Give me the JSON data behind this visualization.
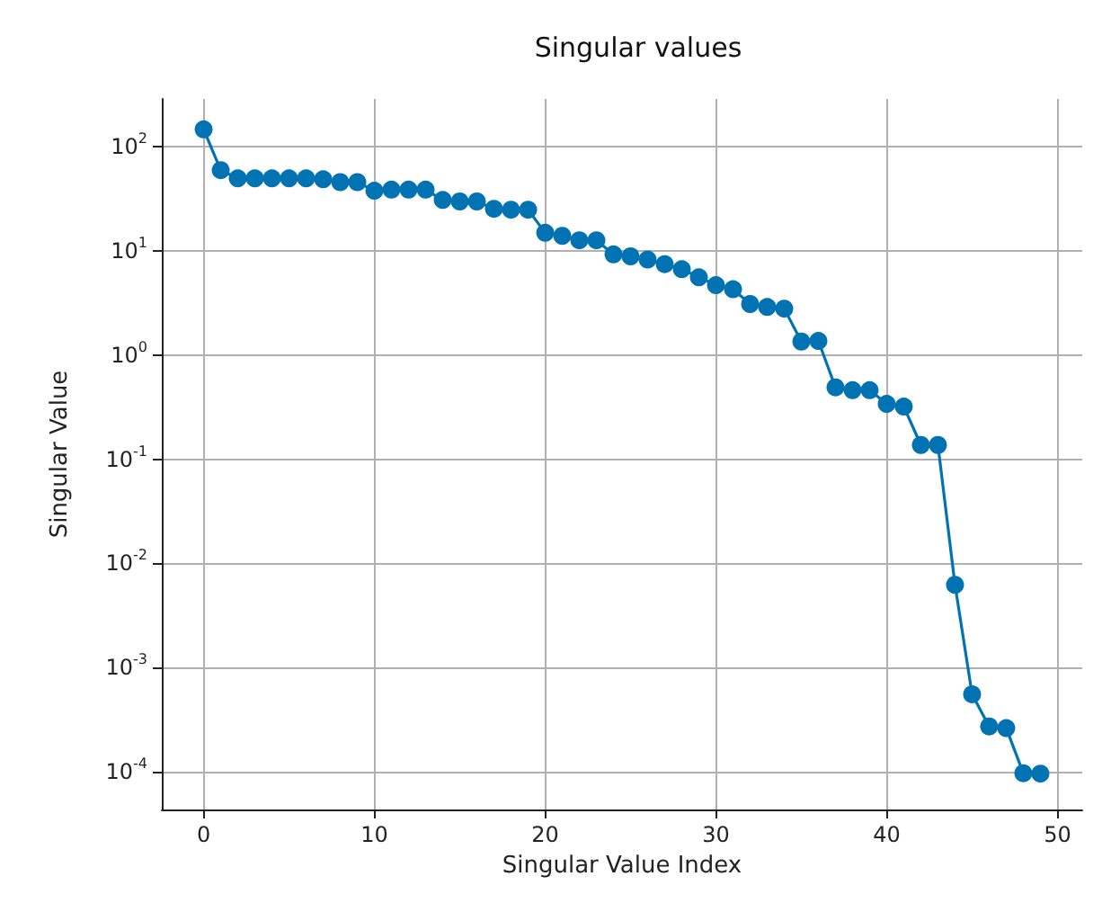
{
  "chart_data": {
    "type": "line",
    "title": "Singular values",
    "xlabel": "Singular Value Index",
    "ylabel": "Singular Value",
    "x": [
      0,
      1,
      2,
      3,
      4,
      5,
      6,
      7,
      8,
      9,
      10,
      11,
      12,
      13,
      14,
      15,
      16,
      17,
      18,
      19,
      20,
      21,
      22,
      23,
      24,
      25,
      26,
      27,
      28,
      29,
      30,
      31,
      32,
      33,
      34,
      35,
      36,
      37,
      38,
      39,
      40,
      41,
      42,
      43,
      44,
      45,
      46,
      47,
      48,
      49
    ],
    "series": [
      {
        "color": "#0173b2",
        "values": [
          148,
          60,
          50,
          50,
          50,
          50,
          50,
          49,
          46,
          46,
          38,
          39,
          39,
          39,
          31,
          30,
          30,
          25.5,
          25,
          25,
          15,
          14,
          12.7,
          12.7,
          9.3,
          8.9,
          8.3,
          7.5,
          6.7,
          5.6,
          4.7,
          4.3,
          3.1,
          2.9,
          2.8,
          1.35,
          1.37,
          0.49,
          0.46,
          0.46,
          0.34,
          0.32,
          0.137,
          0.137,
          0.0062,
          0.00055,
          0.00027,
          0.00026,
          9.6e-05,
          9.5e-05
        ]
      }
    ],
    "xlim": [
      -2.45,
      51.45
    ],
    "xticks": [
      0,
      10,
      20,
      30,
      40,
      50
    ],
    "ylim": [
      4.3e-05,
      290
    ],
    "yticks": [
      {
        "value": 0.0001,
        "label": "10$^{-4}$"
      },
      {
        "value": 0.001,
        "label": "10$^{-3}$"
      },
      {
        "value": 0.01,
        "label": "10$^{-2}$"
      },
      {
        "value": 0.1,
        "label": "10$^{-1}$"
      },
      {
        "value": 1,
        "label": "10$^{0}$"
      },
      {
        "value": 10,
        "label": "10$^{1}$"
      },
      {
        "value": 100,
        "label": "10$^{2}$"
      }
    ],
    "log": "y",
    "grid": true,
    "marker": "circle",
    "line_style": "solid"
  }
}
